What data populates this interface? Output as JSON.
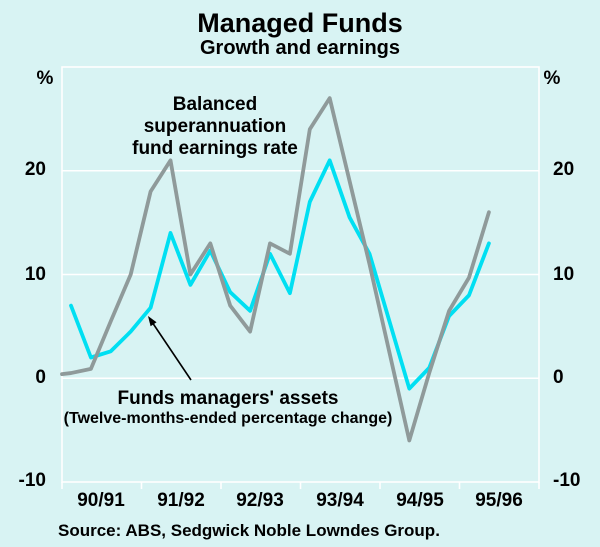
{
  "chart_data": {
    "type": "line",
    "title": "Managed Funds",
    "subtitle": "Growth and earnings",
    "unit": "%",
    "ylim": [
      -10,
      30
    ],
    "gridlines": [
      0,
      10,
      20
    ],
    "axis_labels": [
      20,
      10,
      0,
      -10
    ],
    "x_tick_labels": [
      "90/91",
      "91/92",
      "92/93",
      "93/94",
      "94/95",
      "95/96"
    ],
    "x_note": "quarterly points, Sep 1990 to Dec 1995; ticks mark each July",
    "legend_position": "annotations on plot",
    "grid": "white horizontal gridlines on pale-cyan panel",
    "series": [
      {
        "name": "Funds managers' assets",
        "annotation_line1": "Funds managers' assets",
        "annotation_line2": "(Twelve-months-ended percentage change)",
        "color": "#00dff2",
        "values": [
          7.0,
          2.0,
          2.6,
          4.5,
          6.8,
          14.0,
          9.0,
          12.3,
          8.3,
          6.5,
          12.0,
          8.2,
          17.0,
          21.0,
          15.5,
          12.0,
          5.5,
          -1.0,
          1.0,
          6.0,
          8.0,
          13.0
        ]
      },
      {
        "name": "Balanced superannuation fund earnings rate",
        "annotation": "Balanced superannuation fund earnings rate",
        "color": "#8f9a9a",
        "lead_value": 0.4,
        "values": [
          0.5,
          0.9,
          5.5,
          10.0,
          18.0,
          21.0,
          10.0,
          13.0,
          7.0,
          4.5,
          13.0,
          12.0,
          24.0,
          27.0,
          19.0,
          11.0,
          2.5,
          -6.0,
          0.5,
          6.5,
          9.7,
          16.0
        ]
      }
    ],
    "annotations": {
      "earnings_label": "Balanced\nsuperannuation\nfund earnings rate",
      "assets_label": "Funds managers' assets",
      "assets_sublabel": "(Twelve-months-ended percentage change)"
    }
  },
  "labels": {
    "earnings_l1": "Balanced",
    "earnings_l2": "superannuation",
    "earnings_l3": "fund earnings rate"
  },
  "source": "Source: ABS, Sedgwick Noble Lowndes Group."
}
